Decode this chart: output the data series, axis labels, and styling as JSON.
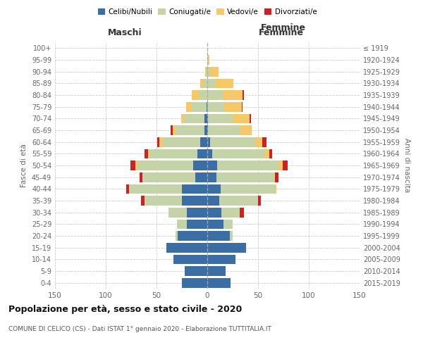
{
  "age_groups": [
    "0-4",
    "5-9",
    "10-14",
    "15-19",
    "20-24",
    "25-29",
    "30-34",
    "35-39",
    "40-44",
    "45-49",
    "50-54",
    "55-59",
    "60-64",
    "65-69",
    "70-74",
    "75-79",
    "80-84",
    "85-89",
    "90-94",
    "95-99",
    "100+"
  ],
  "birth_years": [
    "2015-2019",
    "2010-2014",
    "2005-2009",
    "2000-2004",
    "1995-1999",
    "1990-1994",
    "1985-1989",
    "1980-1984",
    "1975-1979",
    "1970-1974",
    "1965-1969",
    "1960-1964",
    "1955-1959",
    "1950-1954",
    "1945-1949",
    "1940-1944",
    "1935-1939",
    "1930-1934",
    "1925-1929",
    "1920-1924",
    "≤ 1919"
  ],
  "colors": {
    "celibe": "#3a6ea5",
    "coniugato": "#c5d4a8",
    "vedovo": "#f5c96a",
    "divorziato": "#cc2222"
  },
  "maschi": {
    "celibe": [
      25,
      22,
      33,
      40,
      29,
      20,
      20,
      25,
      25,
      12,
      14,
      10,
      7,
      3,
      3,
      1,
      0,
      0,
      0,
      0,
      0
    ],
    "coniugato": [
      0,
      0,
      0,
      0,
      2,
      10,
      18,
      37,
      52,
      52,
      55,
      47,
      37,
      28,
      20,
      14,
      8,
      4,
      1,
      0,
      0
    ],
    "vedovo": [
      0,
      0,
      0,
      0,
      0,
      0,
      0,
      0,
      0,
      0,
      2,
      1,
      3,
      3,
      3,
      6,
      7,
      3,
      1,
      0,
      0
    ],
    "divorziato": [
      0,
      0,
      0,
      0,
      0,
      0,
      0,
      3,
      3,
      3,
      5,
      4,
      2,
      2,
      0,
      0,
      0,
      0,
      0,
      0,
      0
    ]
  },
  "femmine": {
    "nubile": [
      23,
      18,
      28,
      38,
      22,
      16,
      14,
      12,
      13,
      9,
      10,
      5,
      3,
      1,
      1,
      0,
      0,
      0,
      0,
      0,
      0
    ],
    "coniugata": [
      0,
      0,
      0,
      0,
      3,
      9,
      18,
      38,
      54,
      57,
      60,
      52,
      44,
      31,
      24,
      17,
      15,
      8,
      3,
      1,
      0
    ],
    "vedova": [
      0,
      0,
      0,
      0,
      0,
      0,
      0,
      0,
      1,
      1,
      4,
      4,
      7,
      12,
      17,
      17,
      20,
      18,
      8,
      1,
      0
    ],
    "divorziata": [
      0,
      0,
      0,
      0,
      0,
      0,
      4,
      3,
      0,
      3,
      5,
      3,
      4,
      0,
      1,
      1,
      1,
      0,
      0,
      0,
      0
    ]
  },
  "xlim": 150,
  "title": "Popolazione per età, sesso e stato civile - 2020",
  "subtitle": "COMUNE DI CELICO (CS) - Dati ISTAT 1° gennaio 2020 - Elaborazione TUTTITALIA.IT",
  "ylabel_left": "Fasce di età",
  "ylabel_right": "Anni di nascita",
  "xlabel_left": "Maschi",
  "xlabel_right": "Femmine"
}
